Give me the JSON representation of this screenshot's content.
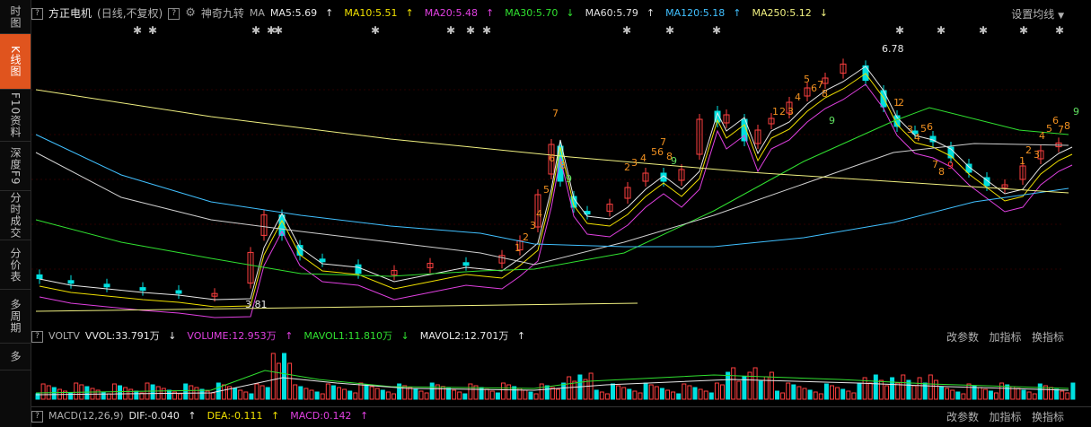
{
  "sidebar": {
    "items": [
      {
        "label": "时图",
        "active": false
      },
      {
        "label": "K线图",
        "active": true
      },
      {
        "label": "F10资料",
        "active": false
      },
      {
        "label": "深度F9",
        "active": false
      },
      {
        "label": "分时成交",
        "active": false
      },
      {
        "label": "分价表",
        "active": false
      },
      {
        "label": "多周期",
        "active": false
      },
      {
        "label": "多",
        "active": false
      }
    ]
  },
  "header": {
    "help_icon": "?",
    "stock_name": "方正电机",
    "period": "(日线,不复权)",
    "gear_icon": "gear-icon",
    "indicator_name": "神奇九转",
    "ma_label": "MA",
    "ma_items": [
      {
        "label": "MA5:5.69",
        "arrow": "↑",
        "color": "#e8e8e8"
      },
      {
        "label": "MA10:5.51",
        "arrow": "↑",
        "color": "#f0e000"
      },
      {
        "label": "MA20:5.48",
        "arrow": "↑",
        "color": "#e040e0"
      },
      {
        "label": "MA30:5.70",
        "arrow": "↓",
        "color": "#30e030"
      },
      {
        "label": "MA60:5.79",
        "arrow": "↑",
        "color": "#e0e0e0"
      },
      {
        "label": "MA120:5.18",
        "arrow": "↑",
        "color": "#40c0ff"
      },
      {
        "label": "MA250:5.12",
        "arrow": "↓",
        "color": "#f0f080"
      }
    ],
    "settings_link": "设置均线",
    "high_label": "6.78",
    "low_label": "3.81"
  },
  "volume": {
    "name": "VOLTV",
    "vvol": "VVOL:33.791万",
    "vvol_arrow": "↓",
    "volume": "VOLUME:12.953万",
    "volume_arrow": "↑",
    "mavol1": "MAVOL1:11.810万",
    "mavol1_arrow": "↓",
    "mavol2": "MAVOL2:12.701万",
    "mavol2_arrow": "↑",
    "links": [
      "改参数",
      "加指标",
      "换指标"
    ]
  },
  "macd": {
    "name": "MACD(12,26,9)",
    "dif": "DIF:-0.040",
    "dif_arrow": "↑",
    "dea": "DEA:-0.111",
    "dea_arrow": "↑",
    "macd": "MACD:0.142",
    "macd_arrow": "↑",
    "links": [
      "改参数",
      "加指标",
      "换指标"
    ]
  },
  "colors": {
    "up": "#ff4040",
    "down": "#00e0e0",
    "nine_up": "#f09020",
    "nine_down": "#ff3030",
    "nine_green": "#60e060"
  }
}
